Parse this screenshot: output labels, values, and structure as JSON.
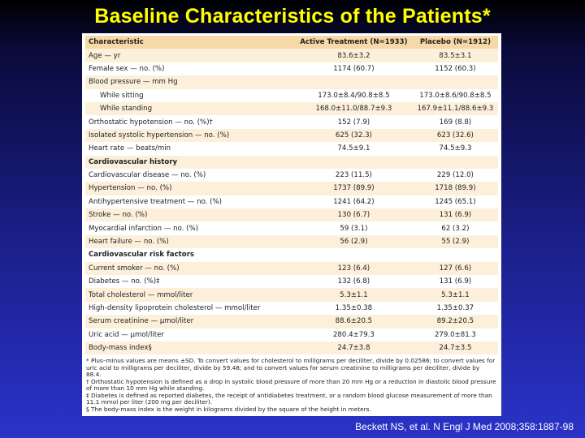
{
  "title": "Baseline Characteristics of the Patients*",
  "table": {
    "headers": [
      "Characteristic",
      "Active Treatment (N=1933)",
      "Placebo (N=1912)"
    ],
    "rows": [
      {
        "label": "Age — yr",
        "active": "83.6±3.2",
        "placebo": "83.5±3.1",
        "indent": false,
        "section": false
      },
      {
        "label": "Female sex — no. (%)",
        "active": "1174 (60.7)",
        "placebo": "1152 (60.3)",
        "indent": false,
        "section": false
      },
      {
        "label": "Blood pressure — mm Hg",
        "active": "",
        "placebo": "",
        "indent": false,
        "section": false
      },
      {
        "label": "While sitting",
        "active": "173.0±8.4/90.8±8.5",
        "placebo": "173.0±8.6/90.8±8.5",
        "indent": true,
        "section": false
      },
      {
        "label": "While standing",
        "active": "168.0±11.0/88.7±9.3",
        "placebo": "167.9±11.1/88.6±9.3",
        "indent": true,
        "section": false
      },
      {
        "label": "Orthostatic hypotension — no. (%)†",
        "active": "152 (7.9)",
        "placebo": "169 (8.8)",
        "indent": false,
        "section": false
      },
      {
        "label": "Isolated systolic hypertension — no. (%)",
        "active": "625 (32.3)",
        "placebo": "623 (32.6)",
        "indent": false,
        "section": false
      },
      {
        "label": "Heart rate — beats/min",
        "active": "74.5±9.1",
        "placebo": "74.5±9.3",
        "indent": false,
        "section": false
      },
      {
        "label": "Cardiovascular history",
        "active": "",
        "placebo": "",
        "indent": false,
        "section": true
      },
      {
        "label": "Cardiovascular disease — no. (%)",
        "active": "223 (11.5)",
        "placebo": "229 (12.0)",
        "indent": false,
        "section": false
      },
      {
        "label": "Hypertension — no. (%)",
        "active": "1737 (89.9)",
        "placebo": "1718 (89.9)",
        "indent": false,
        "section": false
      },
      {
        "label": "Antihypertensive treatment — no. (%)",
        "active": "1241 (64.2)",
        "placebo": "1245 (65.1)",
        "indent": false,
        "section": false
      },
      {
        "label": "Stroke — no. (%)",
        "active": "130 (6.7)",
        "placebo": "131 (6.9)",
        "indent": false,
        "section": false
      },
      {
        "label": "Myocardial infarction — no. (%)",
        "active": "59 (3.1)",
        "placebo": "62 (3.2)",
        "indent": false,
        "section": false
      },
      {
        "label": "Heart failure — no. (%)",
        "active": "56 (2.9)",
        "placebo": "55 (2.9)",
        "indent": false,
        "section": false
      },
      {
        "label": "Cardiovascular risk factors",
        "active": "",
        "placebo": "",
        "indent": false,
        "section": true
      },
      {
        "label": "Current smoker — no. (%)",
        "active": "123 (6.4)",
        "placebo": "127 (6.6)",
        "indent": false,
        "section": false
      },
      {
        "label": "Diabetes — no. (%)‡",
        "active": "132 (6.8)",
        "placebo": "131 (6.9)",
        "indent": false,
        "section": false
      },
      {
        "label": "Total cholesterol — mmol/liter",
        "active": "5.3±1.1",
        "placebo": "5.3±1.1",
        "indent": false,
        "section": false
      },
      {
        "label": "High-density lipoprotein cholesterol — mmol/liter",
        "active": "1.35±0.38",
        "placebo": "1.35±0.37",
        "indent": false,
        "section": false
      },
      {
        "label": "Serum creatinine — μmol/liter",
        "active": "88.6±20.5",
        "placebo": "89.2±20.5",
        "indent": false,
        "section": false
      },
      {
        "label": "Uric acid — μmol/liter",
        "active": "280.4±79.3",
        "placebo": "279.0±81.3",
        "indent": false,
        "section": false
      },
      {
        "label": "Body-mass index§",
        "active": "24.7±3.8",
        "placebo": "24.7±3.5",
        "indent": false,
        "section": false
      }
    ]
  },
  "footnotes": [
    "* Plus–minus values are means ±SD. To convert values for cholesterol to milligrams per deciliter, divide by 0.02586; to convert values for uric acid to milligrams per deciliter, divide by 59.48; and to convert values for serum creatinine to milligrams per deciliter, divide by 88.4.",
    "† Orthostatic hypotension is defined as a drop in systolic blood pressure of more than 20 mm Hg or a reduction in diastolic blood pressure of more than 10 mm Hg while standing.",
    "‡ Diabetes is defined as reported diabetes, the receipt of antidiabetes treatment, or a random blood glucose measurement of more than 11.1 mmol per liter (200 mg per deciliter).",
    "§ The body-mass index is the weight in kilograms divided by the square of the height in meters."
  ],
  "citation": "Beckett NS, et al. N Engl J Med 2008;358:1887-98"
}
